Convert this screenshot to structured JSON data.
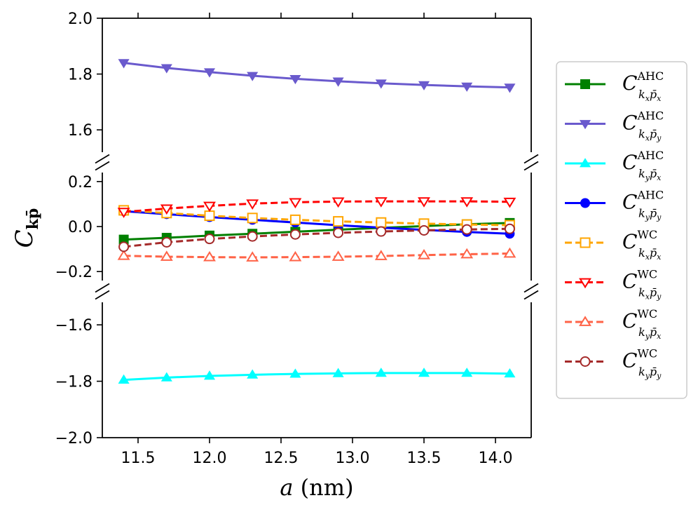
{
  "chart_data": {
    "type": "line",
    "title": "",
    "xlabel": "a (nm)",
    "ylabel": "C_kp̄",
    "xlim": [
      11.25,
      14.25
    ],
    "x_ticks": [
      11.5,
      12.0,
      12.5,
      13.0,
      13.5,
      14.0
    ],
    "x_tick_labels": [
      "11.5",
      "12.0",
      "12.5",
      "13.0",
      "13.5",
      "14.0"
    ],
    "y_axis_broken": true,
    "panels": [
      {
        "ylim": [
          1.52,
          2.0
        ],
        "y_ticks": [
          1.6,
          1.8,
          2.0
        ],
        "y_tick_labels": [
          "1.6",
          "1.8",
          "2.0"
        ]
      },
      {
        "ylim": [
          -0.24,
          0.24
        ],
        "y_ticks": [
          -0.2,
          0.0,
          0.2
        ],
        "y_tick_labels": [
          "−0.2",
          "0.0",
          "0.2"
        ]
      },
      {
        "ylim": [
          -2.0,
          -1.52
        ],
        "y_ticks": [
          -2.0,
          -1.8,
          -1.6
        ],
        "y_tick_labels": [
          "−2.0",
          "−1.8",
          "−1.6"
        ]
      }
    ],
    "x": [
      11.4,
      11.7,
      12.0,
      12.3,
      12.6,
      12.9,
      13.2,
      13.5,
      13.8,
      14.1
    ],
    "legend_position": "right outside",
    "series": [
      {
        "base": "C",
        "sup": "AHC",
        "sub_k": "x",
        "sub_p": "x",
        "color": "#008000",
        "dash": false,
        "marker": "square",
        "filled": true,
        "values": [
          -0.058,
          -0.05,
          -0.04,
          -0.032,
          -0.023,
          -0.014,
          -0.006,
          0.002,
          0.01,
          0.016
        ]
      },
      {
        "base": "C",
        "sup": "AHC",
        "sub_k": "x",
        "sub_p": "y",
        "color": "#6a5acd",
        "dash": false,
        "marker": "triangle-down",
        "filled": true,
        "values": [
          1.84,
          1.822,
          1.807,
          1.794,
          1.783,
          1.774,
          1.767,
          1.761,
          1.756,
          1.752
        ]
      },
      {
        "base": "C",
        "sup": "AHC",
        "sub_k": "y",
        "sub_p": "x",
        "color": "#00ffff",
        "dash": false,
        "marker": "triangle-up",
        "filled": true,
        "values": [
          -1.795,
          -1.787,
          -1.781,
          -1.777,
          -1.774,
          -1.772,
          -1.771,
          -1.771,
          -1.771,
          -1.773
        ]
      },
      {
        "base": "C",
        "sup": "AHC",
        "sub_k": "y",
        "sub_p": "y",
        "color": "#0000ff",
        "dash": false,
        "marker": "circle",
        "filled": true,
        "values": [
          0.068,
          0.055,
          0.042,
          0.03,
          0.018,
          0.006,
          -0.005,
          -0.015,
          -0.024,
          -0.032
        ]
      },
      {
        "base": "C",
        "sup": "WC",
        "sub_k": "x",
        "sub_p": "x",
        "color": "#ffa500",
        "dash": true,
        "marker": "square",
        "filled": false,
        "values": [
          0.072,
          0.06,
          0.048,
          0.038,
          0.03,
          0.023,
          0.018,
          0.013,
          0.009,
          0.006
        ]
      },
      {
        "base": "C",
        "sup": "WC",
        "sub_k": "x",
        "sub_p": "y",
        "color": "#ff0000",
        "dash": true,
        "marker": "triangle-down",
        "filled": false,
        "values": [
          0.065,
          0.08,
          0.092,
          0.102,
          0.108,
          0.111,
          0.112,
          0.112,
          0.112,
          0.11
        ]
      },
      {
        "base": "C",
        "sup": "WC",
        "sub_k": "y",
        "sub_p": "x",
        "color": "#ff6347",
        "dash": true,
        "marker": "triangle-up",
        "filled": false,
        "values": [
          -0.13,
          -0.134,
          -0.136,
          -0.137,
          -0.136,
          -0.134,
          -0.131,
          -0.127,
          -0.123,
          -0.12
        ]
      },
      {
        "base": "C",
        "sup": "WC",
        "sub_k": "y",
        "sub_p": "y",
        "color": "#a52a2a",
        "dash": true,
        "marker": "circle",
        "filled": false,
        "values": [
          -0.09,
          -0.07,
          -0.055,
          -0.044,
          -0.035,
          -0.028,
          -0.022,
          -0.017,
          -0.013,
          -0.01
        ]
      }
    ]
  }
}
